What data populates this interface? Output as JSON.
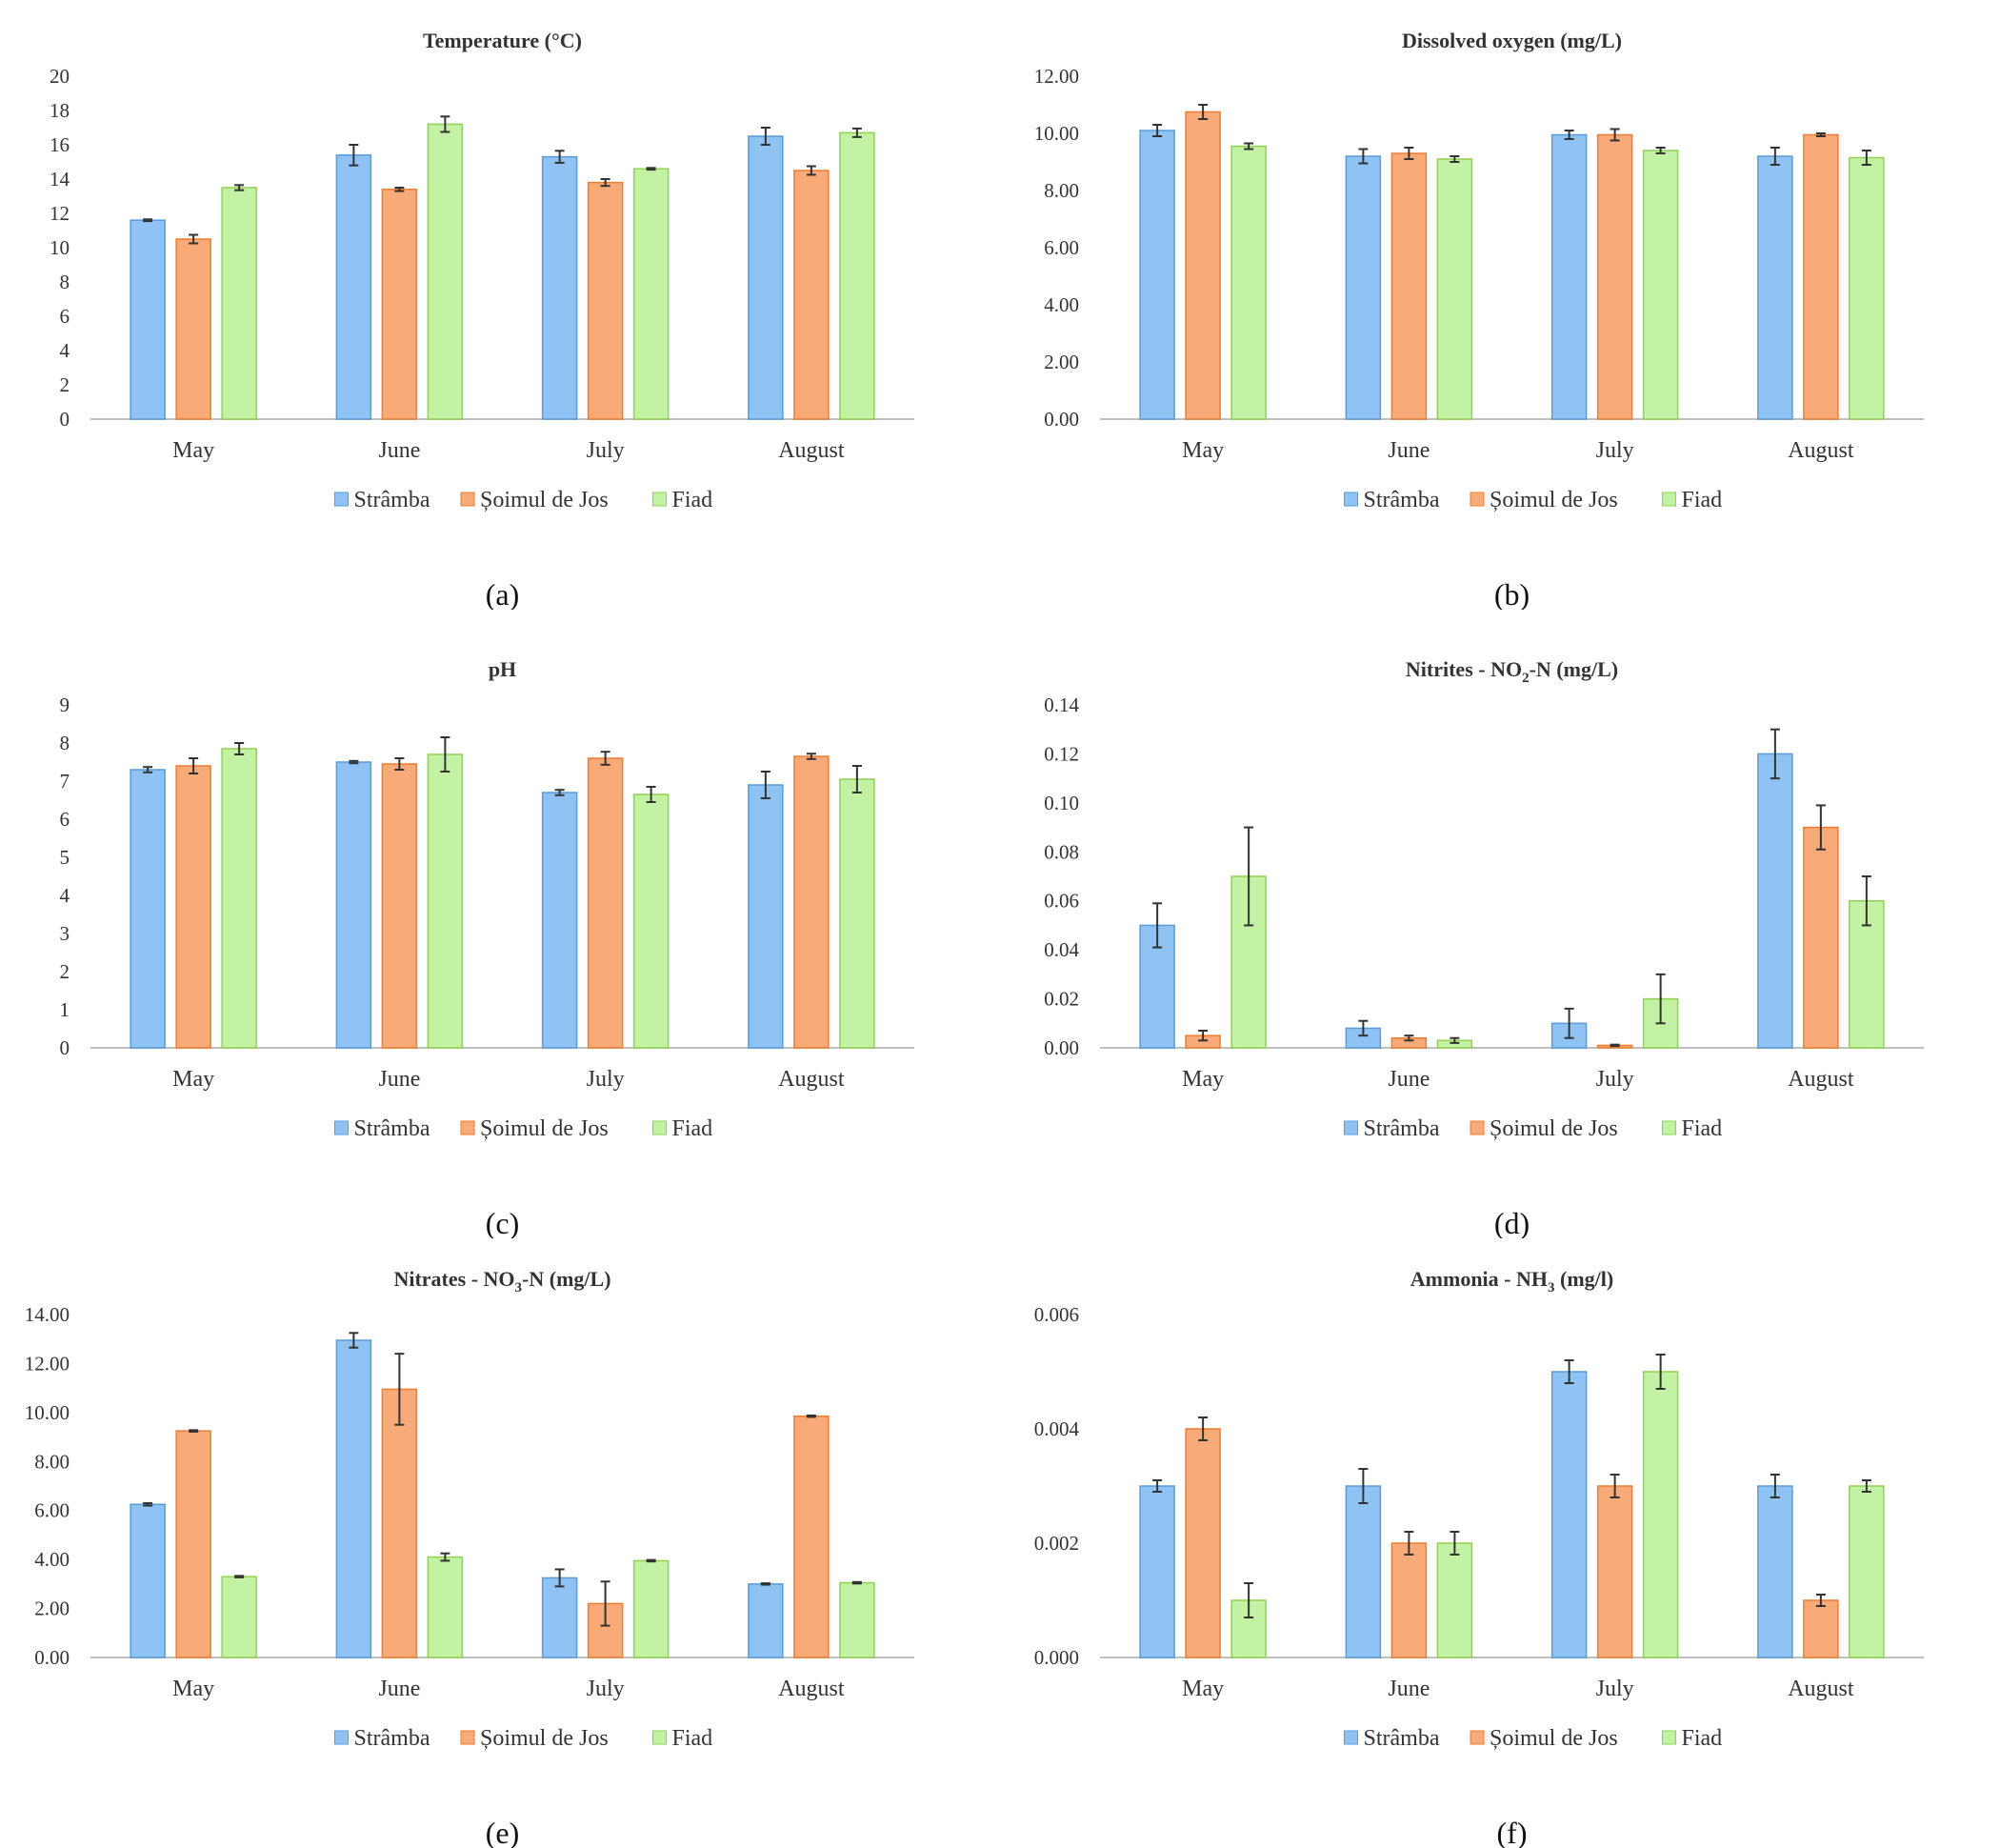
{
  "colors": {
    "Strâmba": {
      "fill": "#8fc3f4",
      "stroke": "#5b9bd5"
    },
    "Șoimul de Jos": {
      "fill": "#f8ab78",
      "stroke": "#ed7d31"
    },
    "Fiad": {
      "fill": "#c3f2a4",
      "stroke": "#92d050"
    }
  },
  "chart_data": [
    {
      "panel": "(a)",
      "type": "bar",
      "title": "Temperature (°C)",
      "categories": [
        "May",
        "June",
        "July",
        "August"
      ],
      "ylim": [
        0,
        20
      ],
      "yticks": [
        "0",
        "2",
        "4",
        "6",
        "8",
        "10",
        "12",
        "14",
        "16",
        "18",
        "20"
      ],
      "series": [
        {
          "name": "Strâmba",
          "values": [
            11.6,
            15.4,
            15.3,
            16.5
          ],
          "errors": [
            0.05,
            0.6,
            0.35,
            0.5
          ]
        },
        {
          "name": "Șoimul de Jos",
          "values": [
            10.5,
            13.4,
            13.8,
            14.5
          ],
          "errors": [
            0.25,
            0.1,
            0.2,
            0.25
          ]
        },
        {
          "name": "Fiad",
          "values": [
            13.5,
            17.2,
            14.6,
            16.7
          ],
          "errors": [
            0.15,
            0.45,
            0.05,
            0.25
          ]
        }
      ],
      "legend": "bottom"
    },
    {
      "panel": "(b)",
      "type": "bar",
      "title": "Dissolved oxygen (mg/L)",
      "categories": [
        "May",
        "June",
        "July",
        "August"
      ],
      "ylim": [
        0,
        12
      ],
      "yticks": [
        "0.00",
        "2.00",
        "4.00",
        "6.00",
        "8.00",
        "10.00",
        "12.00"
      ],
      "series": [
        {
          "name": "Strâmba",
          "values": [
            10.1,
            9.2,
            9.95,
            9.2
          ],
          "errors": [
            0.2,
            0.25,
            0.15,
            0.3
          ]
        },
        {
          "name": "Șoimul de Jos",
          "values": [
            10.75,
            9.3,
            9.95,
            9.95
          ],
          "errors": [
            0.25,
            0.2,
            0.2,
            0.05
          ]
        },
        {
          "name": "Fiad",
          "values": [
            9.55,
            9.1,
            9.4,
            9.15
          ],
          "errors": [
            0.1,
            0.1,
            0.1,
            0.25
          ]
        }
      ],
      "legend": "bottom"
    },
    {
      "panel": "(c)",
      "type": "bar",
      "title": "pH",
      "categories": [
        "May",
        "June",
        "July",
        "August"
      ],
      "ylim": [
        0,
        9
      ],
      "yticks": [
        "0",
        "1",
        "2",
        "3",
        "4",
        "5",
        "6",
        "7",
        "8",
        "9"
      ],
      "series": [
        {
          "name": "Strâmba",
          "values": [
            7.3,
            7.5,
            6.7,
            6.9
          ],
          "errors": [
            0.07,
            0.03,
            0.07,
            0.35
          ]
        },
        {
          "name": "Șoimul de Jos",
          "values": [
            7.4,
            7.45,
            7.6,
            7.65
          ],
          "errors": [
            0.2,
            0.15,
            0.17,
            0.07
          ]
        },
        {
          "name": "Fiad",
          "values": [
            7.85,
            7.7,
            6.65,
            7.05
          ],
          "errors": [
            0.15,
            0.45,
            0.2,
            0.35
          ]
        }
      ],
      "legend": "bottom"
    },
    {
      "panel": "(d)",
      "type": "bar",
      "title": "Nitrites - NO",
      "title_sub": "2",
      "title_rest": "-N (mg/L)",
      "categories": [
        "May",
        "June",
        "July",
        "August"
      ],
      "ylim": [
        0,
        0.14
      ],
      "yticks": [
        "0.00",
        "0.02",
        "0.04",
        "0.06",
        "0.08",
        "0.10",
        "0.12",
        "0.14"
      ],
      "series": [
        {
          "name": "Strâmba",
          "values": [
            0.05,
            0.008,
            0.01,
            0.12
          ],
          "errors": [
            0.009,
            0.003,
            0.006,
            0.01
          ]
        },
        {
          "name": "Șoimul de Jos",
          "values": [
            0.005,
            0.004,
            0.001,
            0.09
          ],
          "errors": [
            0.002,
            0.001,
            0.0003,
            0.009
          ]
        },
        {
          "name": "Fiad",
          "values": [
            0.07,
            0.003,
            0.02,
            0.06
          ],
          "errors": [
            0.02,
            0.001,
            0.01,
            0.01
          ]
        }
      ],
      "legend": "bottom"
    },
    {
      "panel": "(e)",
      "type": "bar",
      "title": "Nitrates - NO",
      "title_sub": "3",
      "title_rest": "-N (mg/L)",
      "categories": [
        "May",
        "June",
        "July",
        "August"
      ],
      "ylim": [
        0,
        14
      ],
      "yticks": [
        "0.00",
        "2.00",
        "4.00",
        "6.00",
        "8.00",
        "10.00",
        "12.00",
        "14.00"
      ],
      "series": [
        {
          "name": "Strâmba",
          "values": [
            6.25,
            12.95,
            3.25,
            3.0
          ],
          "errors": [
            0.05,
            0.3,
            0.35,
            0.03
          ]
        },
        {
          "name": "Șoimul de Jos",
          "values": [
            9.25,
            10.95,
            2.2,
            9.85
          ],
          "errors": [
            0.03,
            1.45,
            0.9,
            0.03
          ]
        },
        {
          "name": "Fiad",
          "values": [
            3.3,
            4.1,
            3.95,
            3.05
          ],
          "errors": [
            0.03,
            0.15,
            0.03,
            0.03
          ]
        }
      ],
      "legend": "bottom"
    },
    {
      "panel": "(f)",
      "type": "bar",
      "title": "Ammonia - NH",
      "title_sub": "3",
      "title_rest": " (mg/l)",
      "categories": [
        "May",
        "June",
        "July",
        "August"
      ],
      "ylim": [
        0,
        0.006
      ],
      "yticks": [
        "0.000",
        "0.002",
        "0.004",
        "0.006"
      ],
      "series": [
        {
          "name": "Strâmba",
          "values": [
            0.003,
            0.003,
            0.005,
            0.003
          ],
          "errors": [
            0.0001,
            0.0003,
            0.0002,
            0.0002
          ]
        },
        {
          "name": "Șoimul de Jos",
          "values": [
            0.004,
            0.002,
            0.003,
            0.001
          ],
          "errors": [
            0.0002,
            0.0002,
            0.0002,
            0.0001
          ]
        },
        {
          "name": "Fiad",
          "values": [
            0.001,
            0.002,
            0.005,
            0.003
          ],
          "errors": [
            0.0003,
            0.0002,
            0.0003,
            0.0001
          ]
        }
      ],
      "legend": "bottom"
    }
  ]
}
